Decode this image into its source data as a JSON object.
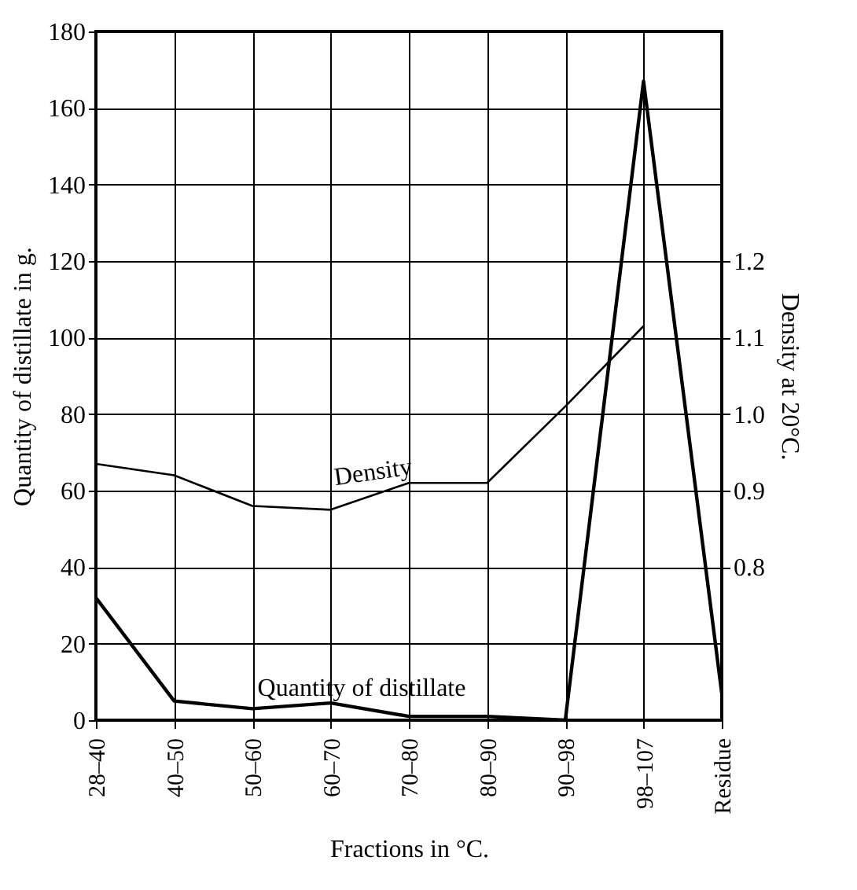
{
  "chart_data": {
    "type": "line",
    "xlabel": "Fractions in °C.",
    "ylabel": "Quantity of distillate in g.",
    "y2label": "Density at 20°C.",
    "categories": [
      "28–40",
      "40–50",
      "50–60",
      "60–70",
      "70–80",
      "80–90",
      "90–98",
      "98–107",
      "Residue"
    ],
    "series": [
      {
        "name": "Quantity of distillate",
        "color": "#000000",
        "values": [
          32,
          5,
          3,
          4.5,
          1,
          1,
          0,
          167,
          7
        ]
      },
      {
        "name": "Density",
        "color": "#000000",
        "axis": "y2",
        "values": [
          0.935,
          0.92,
          0.88,
          0.875,
          0.91,
          0.91,
          1.01,
          1.115,
          null
        ]
      }
    ],
    "ylim": [
      0,
      180
    ],
    "yticks": [
      0,
      20,
      40,
      60,
      80,
      100,
      120,
      140,
      160,
      180
    ],
    "y2lim": [
      0.6,
      1.5
    ],
    "y2ticks": [
      0.8,
      0.9,
      {
        "value": 1,
        "label": "1.0"
      },
      1.1,
      1.2
    ],
    "grid": true,
    "marker": "none",
    "line_style": "solid"
  }
}
